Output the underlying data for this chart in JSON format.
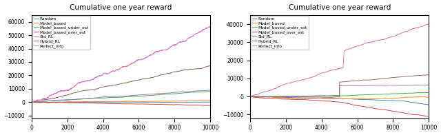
{
  "title": "Cumulative one year reward",
  "legend_labels": [
    "Random",
    "Model_based",
    "Model_based_under_est",
    "Model_based_over_est",
    "Std_RL",
    "Hybrid_RL",
    "Perfect_Info"
  ],
  "colors": [
    "#1f77b4",
    "#ff7f0e",
    "#2ca02c",
    "#d62728",
    "#9467bd",
    "#8c564b",
    "#e377c2"
  ],
  "n_steps": 10000,
  "left_ylim": [
    -12000,
    65000
  ],
  "right_ylim": [
    -12000,
    45000
  ],
  "xlim": [
    0,
    10000
  ],
  "xticks": [
    0,
    2000,
    4000,
    6000,
    8000,
    10000
  ],
  "left_yticks": [
    -10000,
    0,
    10000,
    20000,
    30000,
    40000,
    50000,
    60000
  ],
  "right_yticks": [
    -10000,
    0,
    10000,
    20000,
    30000,
    40000
  ],
  "figsize": [
    6.4,
    1.96
  ],
  "dpi": 100
}
